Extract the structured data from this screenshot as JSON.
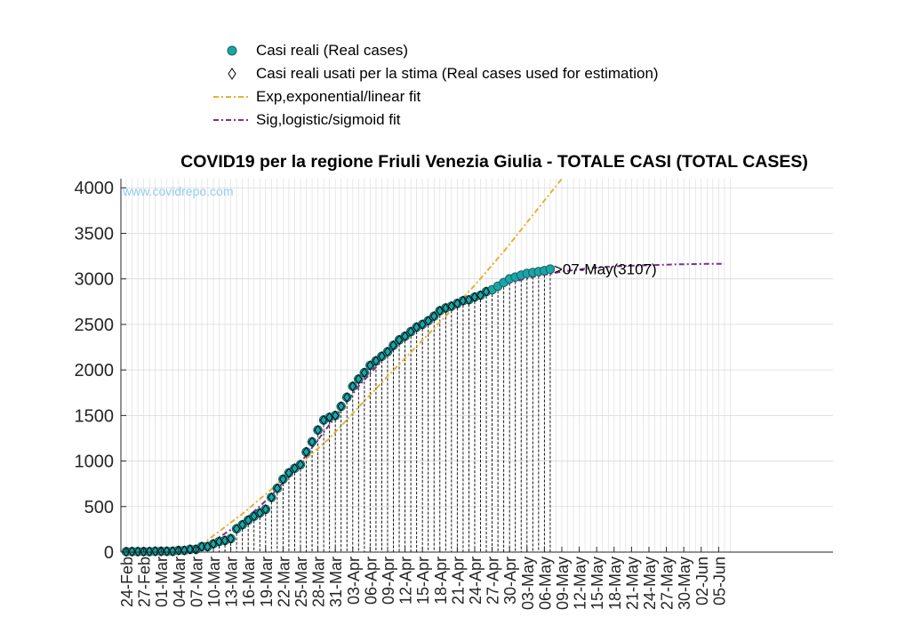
{
  "legend": [
    {
      "label": "Casi reali (Real cases)",
      "symbol": "teal-circle-marker"
    },
    {
      "label": "Casi reali usati per la stima (Real cases used for estimation)",
      "symbol": "diamond-marker"
    },
    {
      "label": "Exp,exponential/linear fit",
      "symbol": "orange-dashdot-line"
    },
    {
      "label": "Sig,logistic/sigmoid fit",
      "symbol": "purple-dashdot-line"
    }
  ],
  "colors": {
    "real_cases": "#17a7a9",
    "exp_fit": "#e6b12c",
    "sig_fit": "#7e2f8e",
    "watermark": "#8ecff0",
    "grid": "#d9d9d9"
  },
  "chart_data": {
    "type": "scatter",
    "title": "COVID19 per la regione Friuli Venezia Giulia - TOTALE CASI (TOTAL CASES)",
    "watermark": "www.covidrepo.com",
    "annotation": ">07-May(3107)",
    "x_start_date": "2020-02-24",
    "x_end_date": "2020-06-07",
    "xticks": [
      "24-Feb",
      "27-Feb",
      "01-Mar",
      "04-Mar",
      "07-Mar",
      "10-Mar",
      "13-Mar",
      "16-Mar",
      "19-Mar",
      "22-Mar",
      "25-Mar",
      "28-Mar",
      "31-Mar",
      "03-Apr",
      "06-Apr",
      "09-Apr",
      "12-Apr",
      "15-Apr",
      "18-Apr",
      "21-Apr",
      "24-Apr",
      "27-Apr",
      "30-Apr",
      "03-May",
      "06-May",
      "09-May",
      "12-May",
      "15-May",
      "18-May",
      "21-May",
      "24-May",
      "27-May",
      "30-May",
      "02-Jun",
      "05-Jun"
    ],
    "ylim": [
      0,
      4100
    ],
    "yticks": [
      0,
      500,
      1000,
      1500,
      2000,
      2500,
      3000,
      3500,
      4000
    ],
    "grid": true,
    "series": [
      {
        "name": "Casi reali (Real cases)",
        "dates": [
          "24-Feb",
          "25-Feb",
          "26-Feb",
          "27-Feb",
          "28-Feb",
          "29-Feb",
          "01-Mar",
          "02-Mar",
          "03-Mar",
          "04-Mar",
          "05-Mar",
          "06-Mar",
          "07-Mar",
          "08-Mar",
          "09-Mar",
          "10-Mar",
          "11-Mar",
          "12-Mar",
          "13-Mar",
          "14-Mar",
          "15-Mar",
          "16-Mar",
          "17-Mar",
          "18-Mar",
          "19-Mar",
          "20-Mar",
          "21-Mar",
          "22-Mar",
          "23-Mar",
          "24-Mar",
          "25-Mar",
          "26-Mar",
          "27-Mar",
          "28-Mar",
          "29-Mar",
          "30-Mar",
          "31-Mar",
          "01-Apr",
          "02-Apr",
          "03-Apr",
          "04-Apr",
          "05-Apr",
          "06-Apr",
          "07-Apr",
          "08-Apr",
          "09-Apr",
          "10-Apr",
          "11-Apr",
          "12-Apr",
          "13-Apr",
          "14-Apr",
          "15-Apr",
          "16-Apr",
          "17-Apr",
          "18-Apr",
          "19-Apr",
          "20-Apr",
          "21-Apr",
          "22-Apr",
          "23-Apr",
          "24-Apr",
          "25-Apr",
          "26-Apr",
          "27-Apr",
          "28-Apr",
          "29-Apr",
          "30-Apr",
          "01-May",
          "02-May",
          "03-May",
          "04-May",
          "05-May",
          "06-May",
          "07-May"
        ],
        "values": [
          5,
          6,
          6,
          6,
          6,
          9,
          9,
          9,
          9,
          18,
          18,
          30,
          30,
          60,
          60,
          90,
          116,
          128,
          148,
          256,
          300,
          350,
          393,
          430,
          470,
          600,
          700,
          800,
          870,
          920,
          960,
          1100,
          1210,
          1340,
          1450,
          1480,
          1500,
          1600,
          1700,
          1820,
          1900,
          1970,
          2050,
          2100,
          2150,
          2200,
          2270,
          2330,
          2370,
          2420,
          2470,
          2500,
          2540,
          2590,
          2650,
          2680,
          2700,
          2730,
          2760,
          2770,
          2800,
          2820,
          2860,
          2880,
          2920,
          2960,
          3000,
          3020,
          3040,
          3060,
          3070,
          3080,
          3090,
          3107
        ]
      },
      {
        "name": "Casi reali usati per la stima (Real cases used for estimation)",
        "dates": [
          "24-Feb",
          "25-Feb",
          "26-Feb",
          "27-Feb",
          "28-Feb",
          "29-Feb",
          "01-Mar",
          "02-Mar",
          "03-Mar",
          "04-Mar",
          "05-Mar",
          "06-Mar",
          "07-Mar",
          "08-Mar",
          "09-Mar",
          "10-Mar",
          "11-Mar",
          "12-Mar",
          "13-Mar",
          "14-Mar",
          "15-Mar",
          "16-Mar",
          "17-Mar",
          "18-Mar",
          "19-Mar",
          "20-Mar",
          "21-Mar",
          "22-Mar",
          "23-Mar",
          "24-Mar",
          "25-Mar",
          "26-Mar",
          "27-Mar",
          "28-Mar",
          "29-Mar",
          "30-Mar",
          "31-Mar",
          "01-Apr",
          "02-Apr",
          "03-Apr",
          "04-Apr",
          "05-Apr",
          "06-Apr",
          "07-Apr",
          "08-Apr",
          "09-Apr",
          "10-Apr",
          "11-Apr",
          "12-Apr",
          "13-Apr",
          "14-Apr",
          "15-Apr",
          "16-Apr",
          "17-Apr",
          "18-Apr",
          "19-Apr",
          "20-Apr",
          "21-Apr",
          "22-Apr",
          "23-Apr",
          "24-Apr",
          "25-Apr",
          "26-Apr"
        ],
        "values": [
          5,
          6,
          6,
          6,
          6,
          9,
          9,
          9,
          9,
          18,
          18,
          30,
          30,
          60,
          60,
          90,
          116,
          128,
          148,
          256,
          300,
          350,
          393,
          430,
          470,
          600,
          700,
          800,
          870,
          920,
          960,
          1100,
          1210,
          1340,
          1450,
          1480,
          1500,
          1600,
          1700,
          1820,
          1900,
          1970,
          2050,
          2100,
          2150,
          2200,
          2270,
          2330,
          2370,
          2420,
          2470,
          2500,
          2540,
          2590,
          2650,
          2680,
          2700,
          2730,
          2760,
          2770,
          2800,
          2820,
          2860
        ]
      },
      {
        "name": "Exp,exponential/linear fit",
        "dates": [
          "06-Mar",
          "07-Mar",
          "10-Mar",
          "15-Mar",
          "20-Mar",
          "25-Mar",
          "30-Mar",
          "04-Apr",
          "09-Apr",
          "14-Apr",
          "19-Apr",
          "24-Apr",
          "29-Apr",
          "04-May",
          "09-May"
        ],
        "values": [
          0,
          30,
          180,
          420,
          690,
          970,
          1250,
          1590,
          1930,
          2260,
          2590,
          2930,
          3300,
          3700,
          4100
        ]
      },
      {
        "name": "Sig,logistic/sigmoid fit",
        "dates": [
          "24-Feb",
          "01-Mar",
          "06-Mar",
          "10-Mar",
          "15-Mar",
          "20-Mar",
          "25-Mar",
          "30-Mar",
          "04-Apr",
          "09-Apr",
          "14-Apr",
          "19-Apr",
          "24-Apr",
          "29-Apr",
          "04-May",
          "09-May",
          "14-May",
          "19-May",
          "24-May",
          "29-May",
          "03-Jun",
          "06-Jun"
        ],
        "values": [
          5,
          10,
          30,
          120,
          330,
          620,
          980,
          1400,
          1820,
          2170,
          2450,
          2670,
          2830,
          2940,
          3020,
          3080,
          3120,
          3140,
          3150,
          3160,
          3165,
          3166
        ]
      }
    ]
  }
}
